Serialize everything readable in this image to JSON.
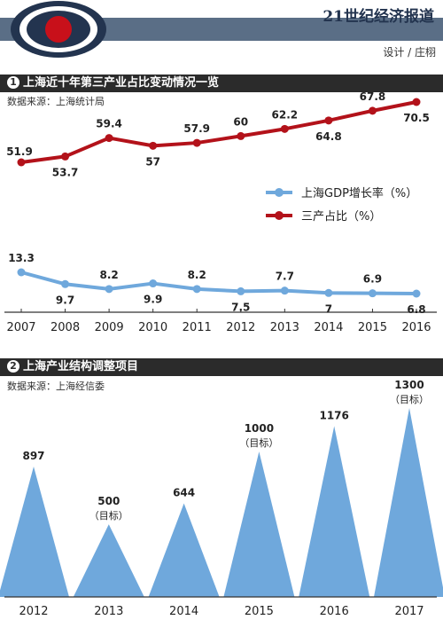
{
  "header": {
    "newspaper": "21世纪经济报道",
    "credit": "设计 / 庄栩"
  },
  "section1": {
    "number": "1",
    "title": "上海近十年第三产业占比变动情况一览",
    "source": "数据来源：上海统计局"
  },
  "section2": {
    "number": "2",
    "title": "上海产业结构调整项目",
    "source": "数据来源：上海经信委"
  },
  "colors": {
    "tertiary_line": "#b3121a",
    "gdp_line": "#6fa8dc",
    "peaks": "#6fa8dc",
    "section_bar": "#2b2b2b"
  },
  "chart_data": [
    {
      "type": "line",
      "x": [
        "2007",
        "2008",
        "2009",
        "2010",
        "2011",
        "2012",
        "2013",
        "2014",
        "2015",
        "2016"
      ],
      "series": [
        {
          "name": "三产占比（%）",
          "values": [
            51.9,
            53.7,
            59.4,
            57,
            57.9,
            60,
            62.2,
            64.8,
            67.8,
            70.5
          ],
          "labels": [
            "51.9",
            "53.7",
            "59.4",
            "57",
            "57.9",
            "60",
            "62.2",
            "64.8",
            "67.8",
            "70.5"
          ]
        },
        {
          "name": "上海GDP增长率（%）",
          "values": [
            13.3,
            9.7,
            8.2,
            9.9,
            8.2,
            7.5,
            7.7,
            7,
            6.9,
            6.8
          ],
          "labels": [
            "13.3",
            "9.7",
            "8.2",
            "9.9",
            "8.2",
            "7.5",
            "7.7",
            "7",
            "6.9",
            "6.8"
          ]
        }
      ],
      "legend": "middle-right"
    },
    {
      "type": "bar",
      "categories": [
        "2012",
        "2013",
        "2014",
        "2015",
        "2016",
        "2017"
      ],
      "values": [
        897,
        500,
        644,
        1000,
        1176,
        1300
      ],
      "labels": [
        "897",
        "500",
        "644",
        "1000",
        "1176",
        "1300"
      ],
      "notes": [
        "",
        "（目标）",
        "",
        "（目标）",
        "",
        "（目标）"
      ]
    }
  ]
}
